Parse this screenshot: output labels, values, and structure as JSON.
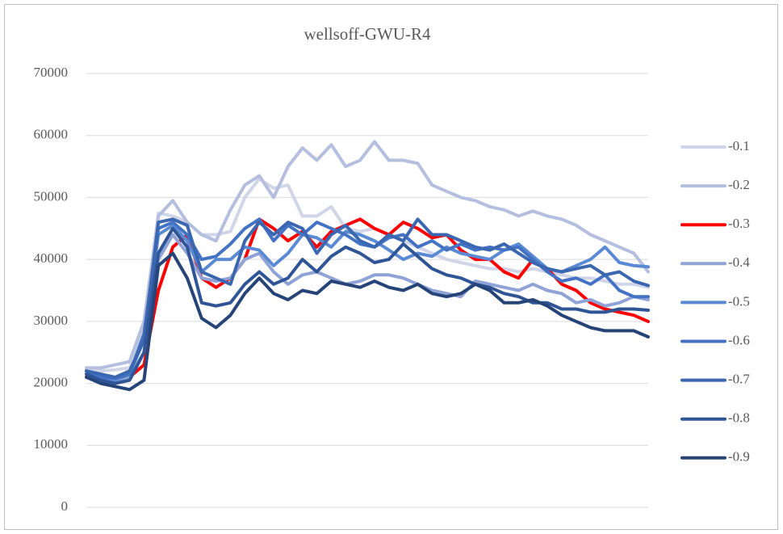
{
  "chart_data": {
    "type": "line",
    "title": "wellsoff-GWU-R4",
    "categories": [
      null,
      null,
      null,
      null,
      null,
      null,
      null,
      null,
      null,
      null,
      null,
      null,
      null,
      null,
      null,
      null,
      null,
      null,
      null,
      null,
      null,
      null,
      null,
      null,
      null,
      null,
      null,
      null,
      null,
      null,
      null,
      null,
      null,
      null,
      null,
      null,
      null,
      null,
      null,
      null
    ],
    "ylim": [
      0,
      70000
    ],
    "yticks": [
      0,
      10000,
      20000,
      30000,
      40000,
      50000,
      60000,
      70000
    ],
    "grid": true,
    "legend": "right",
    "series": [
      {
        "name": "-0.1",
        "color": "#d0d6e8",
        "values": [
          22000,
          22000,
          22200,
          22500,
          29000,
          47500,
          47000,
          46000,
          44000,
          44000,
          44500,
          50000,
          53000,
          51500,
          52000,
          47000,
          47000,
          48500,
          45000,
          44500,
          45000,
          44000,
          43000,
          42000,
          41000,
          40000,
          39500,
          39000,
          38500,
          38500,
          38000,
          38500,
          38000,
          37500,
          37000,
          37000,
          36500,
          36000,
          36000,
          35500
        ]
      },
      {
        "name": "-0.2",
        "color": "#b4bedf",
        "values": [
          22500,
          22500,
          23000,
          23500,
          30000,
          47000,
          49500,
          46000,
          44000,
          43000,
          48000,
          52000,
          53500,
          50000,
          55000,
          58000,
          56000,
          58500,
          55000,
          56000,
          59000,
          56000,
          56000,
          55500,
          52000,
          51000,
          50000,
          49500,
          48500,
          48000,
          47000,
          47800,
          47000,
          46500,
          45500,
          44000,
          43000,
          42000,
          41000,
          38000
        ]
      },
      {
        "name": "-0.3",
        "color": "#ff0000",
        "values": [
          21000,
          20500,
          20500,
          21000,
          23000,
          35000,
          42000,
          44000,
          37000,
          35500,
          37000,
          40000,
          46500,
          45000,
          43000,
          44500,
          42000,
          44500,
          45500,
          46500,
          45000,
          44000,
          46000,
          45000,
          43500,
          44000,
          41500,
          40000,
          40000,
          38000,
          37000,
          40000,
          38500,
          36000,
          35000,
          33000,
          32000,
          31500,
          31000,
          30000
        ]
      },
      {
        "name": "-0.4",
        "color": "#8fa3d6",
        "values": [
          21500,
          20500,
          20000,
          21000,
          25000,
          40000,
          44000,
          41000,
          37000,
          36500,
          37000,
          40000,
          41000,
          38000,
          36000,
          37500,
          38000,
          37000,
          36000,
          36500,
          37500,
          37500,
          37000,
          36000,
          35000,
          34500,
          34000,
          36500,
          36000,
          35500,
          35000,
          36000,
          35000,
          34500,
          33000,
          33500,
          32500,
          33000,
          34000,
          33500
        ]
      },
      {
        "name": "-0.5",
        "color": "#5b8ad4",
        "values": [
          22000,
          21000,
          20500,
          21500,
          27000,
          44000,
          45500,
          43000,
          38000,
          40000,
          40000,
          42000,
          41500,
          39000,
          41000,
          44000,
          43500,
          42000,
          44500,
          44000,
          43000,
          41500,
          40000,
          41000,
          40500,
          42000,
          41000,
          40500,
          40000,
          41500,
          42500,
          40500,
          38500,
          38000,
          39000,
          40000,
          42000,
          39500,
          39000,
          38800
        ]
      },
      {
        "name": "-0.6",
        "color": "#4472c4",
        "values": [
          22000,
          21000,
          20800,
          21500,
          28000,
          45000,
          46000,
          44000,
          40000,
          40500,
          42500,
          45000,
          46500,
          43000,
          45500,
          44000,
          46000,
          45000,
          44000,
          42500,
          42000,
          43500,
          44000,
          42000,
          43000,
          41500,
          42500,
          41500,
          42000,
          41500,
          42000,
          40000,
          38000,
          36500,
          37000,
          36000,
          37500,
          35000,
          34000,
          34000
        ]
      },
      {
        "name": "-0.7",
        "color": "#3b66b0",
        "values": [
          22000,
          21500,
          21000,
          22000,
          27000,
          46000,
          46500,
          45500,
          38000,
          37000,
          36000,
          43000,
          46000,
          44000,
          46000,
          45000,
          41000,
          44000,
          45500,
          43000,
          42000,
          44000,
          43000,
          46500,
          44000,
          44000,
          43000,
          42000,
          41500,
          42500,
          41000,
          39500,
          38500,
          38000,
          38500,
          39000,
          37500,
          38000,
          36500,
          35800
        ]
      },
      {
        "name": "-0.8",
        "color": "#2f5597",
        "values": [
          21500,
          20500,
          20000,
          20500,
          25000,
          41000,
          45000,
          42000,
          33000,
          32500,
          33000,
          36000,
          38000,
          36000,
          37000,
          40000,
          38000,
          40500,
          42000,
          41000,
          39500,
          40000,
          42500,
          40500,
          38500,
          37500,
          37000,
          36000,
          35500,
          34500,
          34000,
          33000,
          33000,
          32000,
          32000,
          31500,
          31500,
          32000,
          32000,
          31800
        ]
      },
      {
        "name": "-0.9",
        "color": "#264478",
        "values": [
          21000,
          20000,
          19500,
          19000,
          20500,
          39000,
          41000,
          37000,
          30500,
          29000,
          31000,
          34500,
          37000,
          34500,
          33500,
          35000,
          34500,
          36500,
          36000,
          35500,
          36500,
          35500,
          35000,
          36000,
          34500,
          34000,
          34500,
          36000,
          35000,
          33000,
          33000,
          33500,
          32500,
          31000,
          30000,
          29000,
          28500,
          28500,
          28500,
          27500
        ]
      }
    ]
  }
}
